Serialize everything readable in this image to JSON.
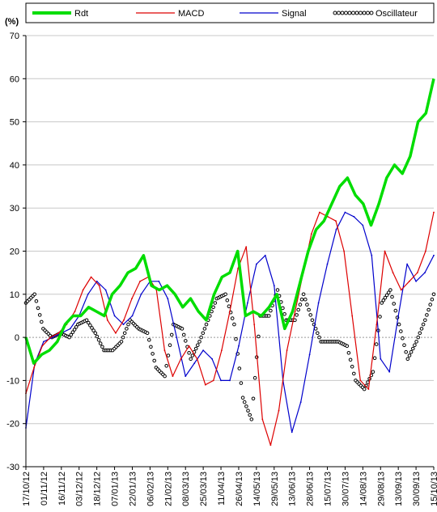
{
  "chart_data": {
    "type": "line",
    "y_unit": "(%)",
    "ylim": [
      -30,
      70
    ],
    "yticks": [
      -30,
      -20,
      -10,
      0,
      10,
      20,
      30,
      40,
      50,
      60,
      70
    ],
    "grid": true,
    "legend_position": "top",
    "x_tick_labels": [
      "17/10/12",
      "01/11/12",
      "16/11/12",
      "03/12/12",
      "18/12/12",
      "07/01/13",
      "22/01/13",
      "06/02/13",
      "21/02/13",
      "08/03/13",
      "25/03/13",
      "11/04/13",
      "26/04/13",
      "14/05/13",
      "29/05/13",
      "13/06/13",
      "28/06/13",
      "15/07/13",
      "30/07/13",
      "14/08/13",
      "29/08/13",
      "13/09/13",
      "30/09/13",
      "15/10/13"
    ],
    "series": [
      {
        "name": "Rdt",
        "color": "#00dd00",
        "style": "thick",
        "values": [
          0,
          -6,
          -4,
          -3,
          -1,
          3,
          5,
          5,
          7,
          6,
          5,
          10,
          12,
          15,
          16,
          19,
          12,
          11,
          12,
          10,
          7,
          9,
          6,
          4,
          10,
          14,
          15,
          20,
          5,
          6,
          5,
          7,
          10,
          2,
          6,
          13,
          20,
          25,
          27,
          31,
          35,
          37,
          33,
          31,
          26,
          31,
          37,
          40,
          38,
          42,
          50,
          52,
          60
        ]
      },
      {
        "name": "MACD",
        "color": "#dd0000",
        "style": "line",
        "values": [
          -13,
          -7,
          -2,
          0,
          1,
          3,
          6,
          11,
          14,
          12,
          4,
          1,
          4,
          9,
          13,
          14,
          11,
          -3,
          -9,
          -5,
          -2,
          -5,
          -11,
          -10,
          -3,
          6,
          16,
          21,
          3,
          -19,
          -25,
          -17,
          -3,
          6,
          15,
          24,
          29,
          28,
          27,
          20,
          5,
          -10,
          -12,
          3,
          20,
          15,
          11,
          13,
          15,
          20,
          29
        ]
      },
      {
        "name": "Signal",
        "color": "#0000cc",
        "style": "line",
        "values": [
          -21,
          -6,
          -1,
          0,
          1,
          2,
          5,
          10,
          13,
          11,
          5,
          3,
          5,
          10,
          13,
          13,
          9,
          0,
          -9,
          -6,
          -3,
          -5,
          -10,
          -10,
          -2,
          8,
          17,
          19,
          12,
          -10,
          -22,
          -15,
          -4,
          8,
          17,
          25,
          29,
          28,
          26,
          19,
          -5,
          -8,
          5,
          17,
          13,
          15,
          19
        ]
      },
      {
        "name": "Oscillateur",
        "color": "#000000",
        "style": "circles",
        "values": [
          8,
          10,
          2,
          0,
          1,
          0,
          3,
          4,
          1,
          -3,
          -3,
          -1,
          4,
          2,
          1,
          -7,
          -9,
          3,
          2,
          -5,
          -1,
          4,
          9,
          10,
          3,
          -14,
          -19,
          5,
          5,
          11,
          4,
          4,
          10,
          4,
          -1,
          -1,
          -1,
          -2,
          -10,
          -12,
          -8,
          8,
          11,
          3,
          -5,
          -1,
          4,
          10
        ]
      }
    ]
  }
}
